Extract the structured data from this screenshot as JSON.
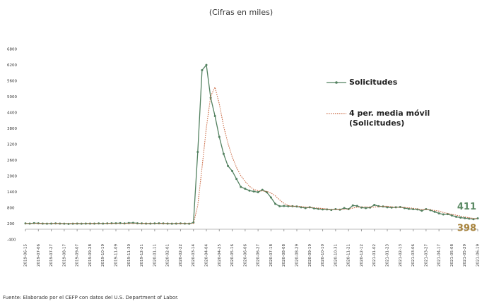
{
  "chart_data": {
    "type": "line",
    "title": "(Cifras en miles)",
    "source": "Fuente: Elaborado por el CEFP con datos del U.S. Department of Labor.",
    "categories": [
      "2019-06-15",
      null,
      null,
      "2019-07-06",
      null,
      null,
      "2019-07-27",
      null,
      null,
      "2019-08-17",
      null,
      null,
      "2019-09-07",
      null,
      null,
      "2019-09-28",
      null,
      null,
      "2019-10-19",
      null,
      null,
      "2019-11-09",
      null,
      null,
      "2019-11-30",
      null,
      null,
      "2019-12-21",
      null,
      null,
      "2020-01-11",
      null,
      null,
      "2020-02-01",
      null,
      null,
      "2020-02-22",
      null,
      null,
      "2020-03-14",
      null,
      null,
      "2020-04-04",
      null,
      null,
      "2020-04-25",
      null,
      null,
      "2020-05-16",
      null,
      null,
      "2020-06-06",
      null,
      null,
      "2020-06-27",
      null,
      null,
      "2020-07-18",
      null,
      null,
      "2020-08-08",
      null,
      null,
      "2020-08-29",
      null,
      null,
      "2020-09-19",
      null,
      null,
      "2020-10-10",
      null,
      null,
      "2020-10-31",
      null,
      null,
      "2020-11-21",
      null,
      null,
      "2020-12-12",
      null,
      null,
      "2021-01-02",
      null,
      null,
      "2021-01-23",
      null,
      null,
      "2021-02-13",
      null,
      null,
      "2021-03-06",
      null,
      null,
      "2021-03-27",
      null,
      null,
      "2021-04-17",
      null,
      null,
      "2021-05-08",
      null,
      null,
      "2021-05-29",
      null,
      null,
      "2021-06-19"
    ],
    "series": [
      {
        "name": "Solicitudes",
        "color": "#52805f",
        "style": "solid",
        "markers": true,
        "values": [
          220,
          215,
          230,
          225,
          215,
          210,
          215,
          220,
          215,
          210,
          205,
          210,
          215,
          210,
          215,
          215,
          215,
          220,
          215,
          220,
          225,
          225,
          230,
          220,
          235,
          240,
          225,
          220,
          215,
          215,
          220,
          225,
          220,
          215,
          210,
          215,
          220,
          215,
          210,
          250,
          2920,
          6015,
          6211,
          4971,
          4281,
          3490,
          2849,
          2395,
          2200,
          1900,
          1600,
          1530,
          1460,
          1430,
          1400,
          1490,
          1400,
          1200,
          960,
          870,
          880,
          870,
          870,
          860,
          830,
          800,
          830,
          790,
          770,
          750,
          750,
          730,
          760,
          740,
          800,
          760,
          900,
          880,
          820,
          800,
          820,
          920,
          870,
          860,
          830,
          820,
          830,
          840,
          800,
          770,
          760,
          750,
          700,
          760,
          720,
          660,
          600,
          560,
          570,
          520,
          470,
          440,
          420,
          400,
          380,
          411
        ],
        "label_color": "#5b8a64"
      },
      {
        "name": "4 per. media móvil (Solicitudes)",
        "color": "#c8643c",
        "style": "dotted",
        "markers": false,
        "values": [
          220,
          220,
          220,
          220,
          220,
          220,
          220,
          220,
          220,
          220,
          220,
          220,
          220,
          220,
          220,
          220,
          220,
          220,
          220,
          220,
          220,
          220,
          220,
          220,
          220,
          220,
          220,
          220,
          220,
          220,
          220,
          220,
          220,
          220,
          220,
          220,
          220,
          220,
          220,
          220,
          895,
          2344,
          3842,
          5029,
          5370,
          4738,
          3898,
          3254,
          2734,
          2336,
          2024,
          1808,
          1623,
          1505,
          1455,
          1445,
          1430,
          1373,
          1263,
          1108,
          978,
          895,
          873,
          870,
          858,
          840,
          830,
          813,
          798,
          785,
          765,
          750,
          748,
          745,
          758,
          765,
          800,
          835,
          840,
          850,
          830,
          840,
          853,
          868,
          870,
          845,
          835,
          830,
          823,
          810,
          793,
          770,
          745,
          743,
          733,
          710,
          685,
          635,
          598,
          563,
          530,
          500,
          463,
          433,
          410,
          398
        ],
        "label_color": "#a8843e"
      }
    ],
    "ylim": [
      -400,
      6800
    ],
    "yticks": [
      -400,
      200,
      800,
      1400,
      2000,
      2600,
      3200,
      3800,
      4400,
      5000,
      5600,
      6200,
      6800
    ],
    "grid": false
  }
}
